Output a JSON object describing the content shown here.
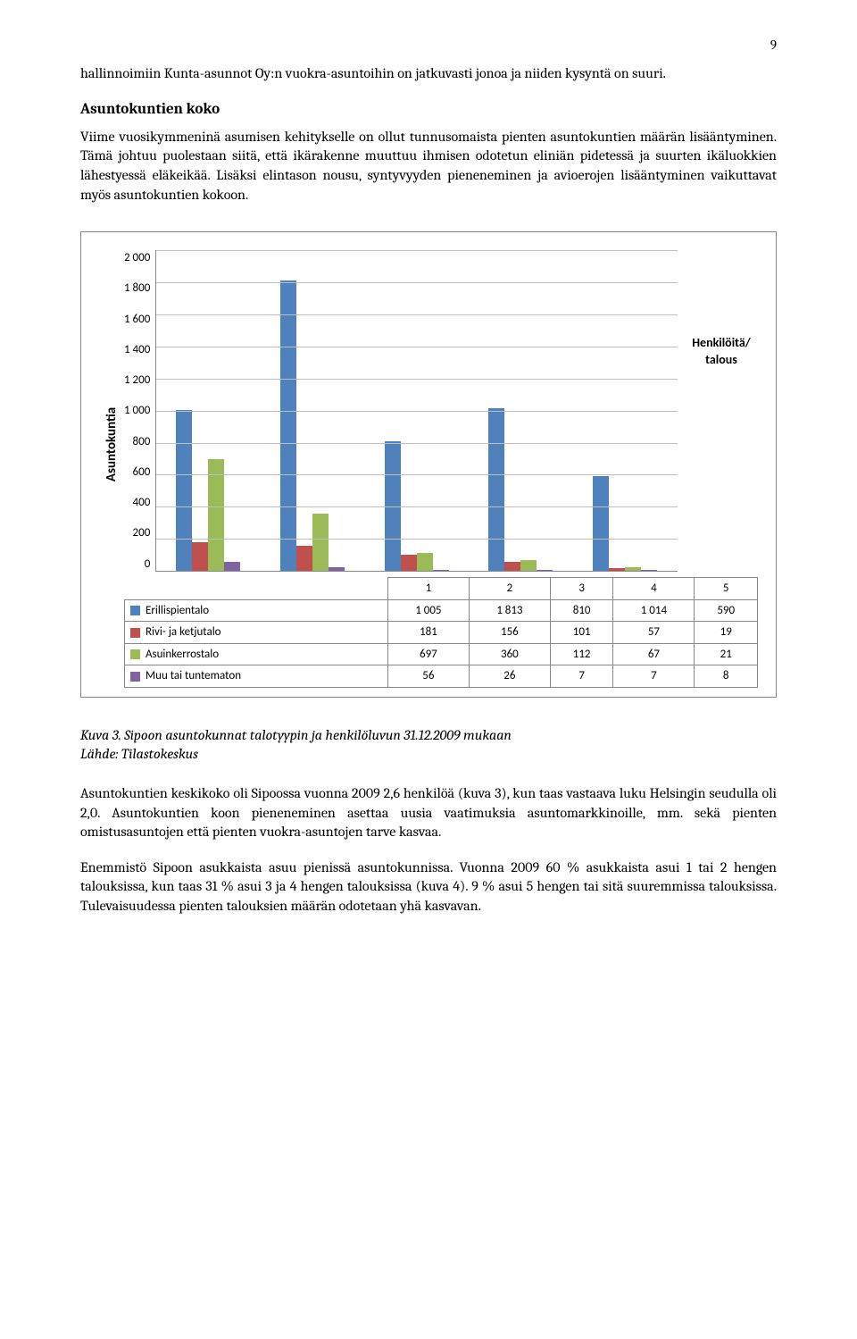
{
  "page_number": "9",
  "para1": "hallinnoimiin Kunta-asunnot Oy:n vuokra-asuntoihin on jatkuvasti jonoa ja niiden kysyntä on suuri.",
  "section_heading": "Asuntokuntien koko",
  "para2": "Viime vuosikymmeninä asumisen kehitykselle on ollut tunnusomaista pienten asuntokuntien määrän lisääntyminen. Tämä johtuu puolestaan siitä, että ikärakenne muuttuu ihmisen odotetun eliniän pidetessä ja suurten ikäluokkien lähestyessä eläkeikää. Lisäksi elintason nousu, syntyvyyden pieneneminen ja avioerojen lisääntyminen vaikuttavat myös asuntokuntien kokoon.",
  "chart": {
    "type": "bar",
    "y_label": "Asuntokuntia",
    "right_label": "Henkilöitä/ talous",
    "ymax": 2000,
    "ytick_step": 200,
    "yticks": [
      "2 000",
      "1 800",
      "1 600",
      "1 400",
      "1 200",
      "1 000",
      "800",
      "600",
      "400",
      "200",
      "0"
    ],
    "categories": [
      "1",
      "2",
      "3",
      "4",
      "5"
    ],
    "series": [
      {
        "name": "Erillispientalo",
        "color": "#4f81bd",
        "values": [
          1005,
          1813,
          810,
          1014,
          590
        ]
      },
      {
        "name": "Rivi- ja ketjutalo",
        "color": "#c0504d",
        "values": [
          181,
          156,
          101,
          57,
          19
        ]
      },
      {
        "name": "Asuinkerrostalo",
        "color": "#9bbb59",
        "values": [
          697,
          360,
          112,
          67,
          21
        ]
      },
      {
        "name": "Muu tai tuntematon",
        "color": "#8064a2",
        "values": [
          56,
          26,
          7,
          7,
          8
        ]
      }
    ],
    "display_values": [
      [
        "1 005",
        "1 813",
        "810",
        "1 014",
        "590"
      ],
      [
        "181",
        "156",
        "101",
        "57",
        "19"
      ],
      [
        "697",
        "360",
        "112",
        "67",
        "21"
      ],
      [
        "56",
        "26",
        "7",
        "7",
        "8"
      ]
    ],
    "grid_color": "#bfbfbf",
    "background_color": "#ffffff",
    "border_color": "#888888"
  },
  "caption_line1": "Kuva 3. Sipoon asuntokunnat talotyypin ja henkilöluvun 31.12.2009 mukaan",
  "caption_line2": "Lähde: Tilastokeskus",
  "para3": "Asuntokuntien keskikoko oli Sipoossa vuonna 2009  2,6 henkilöä (kuva 3), kun taas vastaava luku Helsingin seudulla oli 2,0. Asuntokuntien koon pieneneminen asettaa uusia vaatimuksia asuntomarkkinoille, mm. sekä pienten omistusasuntojen että pienten vuokra-asuntojen tarve kasvaa.",
  "para4": "Enemmistö Sipoon asukkaista asuu pienissä asuntokunnissa. Vuonna 2009  60 % asukkaista asui 1 tai 2 hengen talouksissa, kun taas 31 % asui 3 ja 4 hengen talouksissa (kuva 4). 9 % asui 5 hengen tai sitä suuremmissa talouksissa. Tulevaisuudessa pienten talouksien määrän odotetaan yhä kasvavan."
}
